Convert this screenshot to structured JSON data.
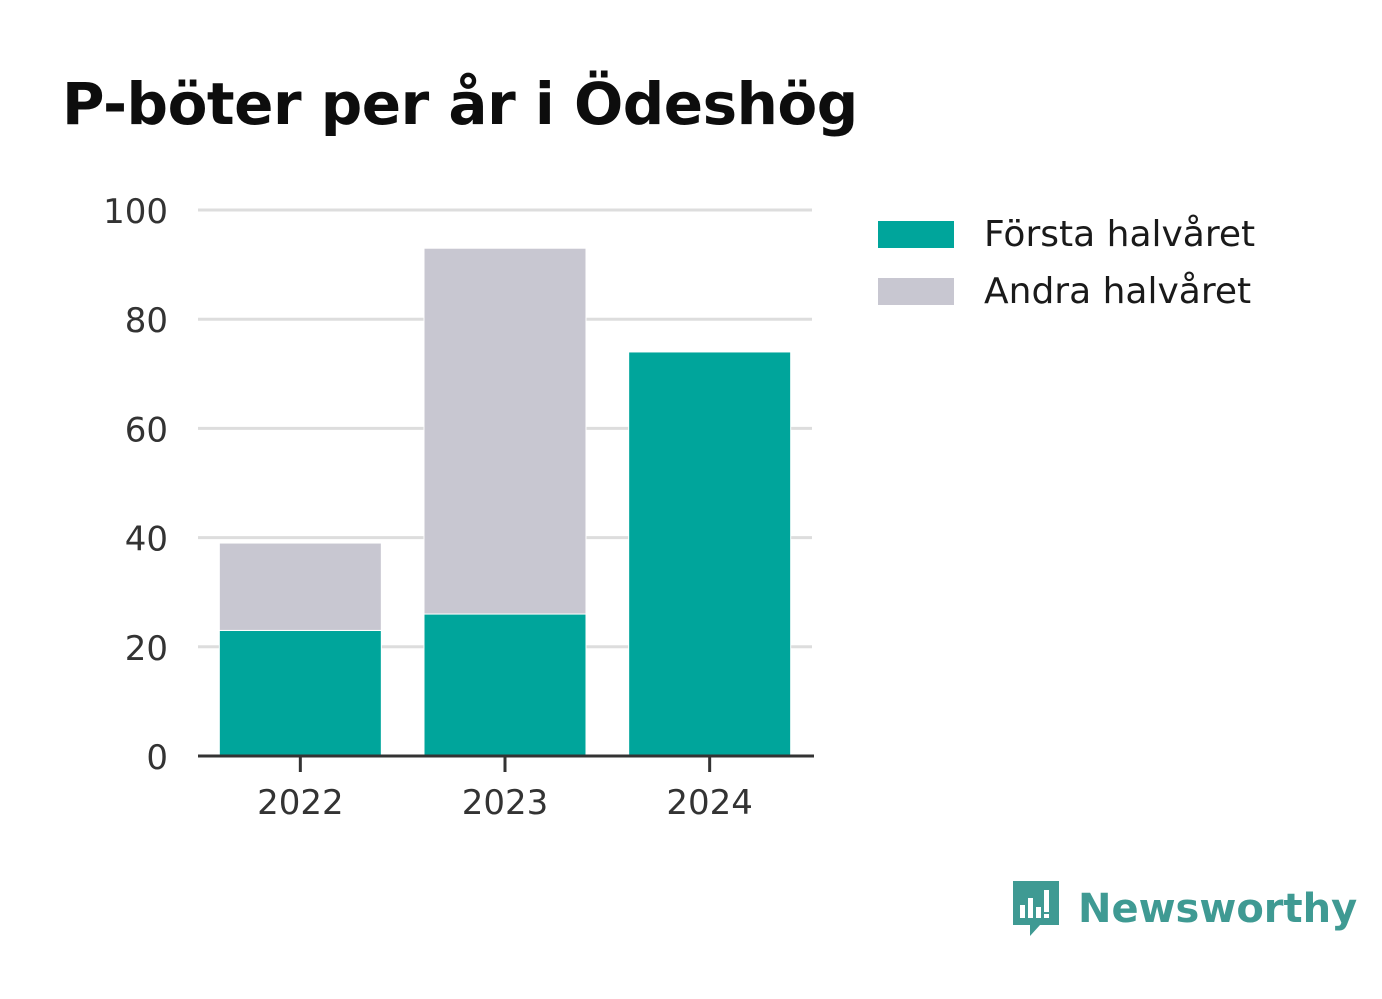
{
  "chart_data": {
    "type": "bar",
    "stacked": true,
    "title": "P-böter per år i Ödeshög",
    "xlabel": "",
    "ylabel": "",
    "categories": [
      "2022",
      "2023",
      "2024"
    ],
    "series": [
      {
        "name": "Första halvåret",
        "color": "#00a59b",
        "values": [
          23,
          26,
          74
        ]
      },
      {
        "name": "Andra halvåret",
        "color": "#c8c7d1",
        "values": [
          16,
          67,
          0
        ]
      }
    ],
    "ylim": [
      0,
      100
    ],
    "yticks": [
      "0",
      "20",
      "40",
      "60",
      "80",
      "100"
    ],
    "grid": true,
    "legend_position": "right"
  },
  "brand": {
    "name": "Newsworthy",
    "icon": "newsworthy-logo-icon",
    "color": "#3f9a93"
  }
}
